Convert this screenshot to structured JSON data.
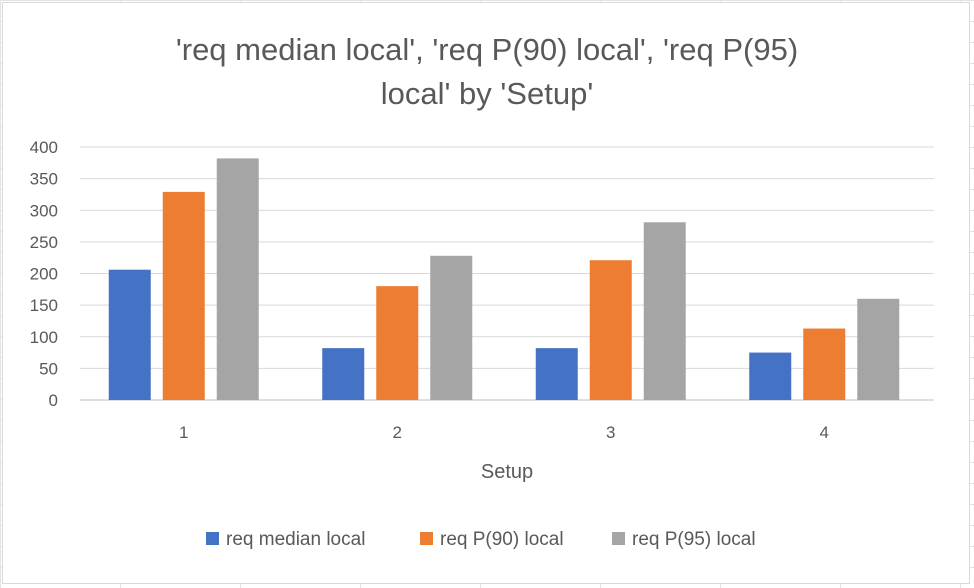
{
  "chart_data": {
    "type": "bar",
    "title_lines": [
      "'req median local', 'req P(90) local', 'req P(95)",
      "local' by 'Setup'"
    ],
    "xlabel": "Setup",
    "ylabel": "",
    "categories": [
      "1",
      "2",
      "3",
      "4"
    ],
    "ylim": [
      0,
      400
    ],
    "yticks": [
      0,
      50,
      100,
      150,
      200,
      250,
      300,
      350,
      400
    ],
    "grid": true,
    "legend_position": "bottom",
    "series": [
      {
        "name": "req median local",
        "color": "#4472c4",
        "values": [
          206,
          82,
          82,
          75
        ]
      },
      {
        "name": "req P(90) local",
        "color": "#ed7d31",
        "values": [
          329,
          180,
          221,
          113
        ]
      },
      {
        "name": "req P(95) local",
        "color": "#a5a5a5",
        "values": [
          382,
          228,
          281,
          160
        ]
      }
    ]
  }
}
